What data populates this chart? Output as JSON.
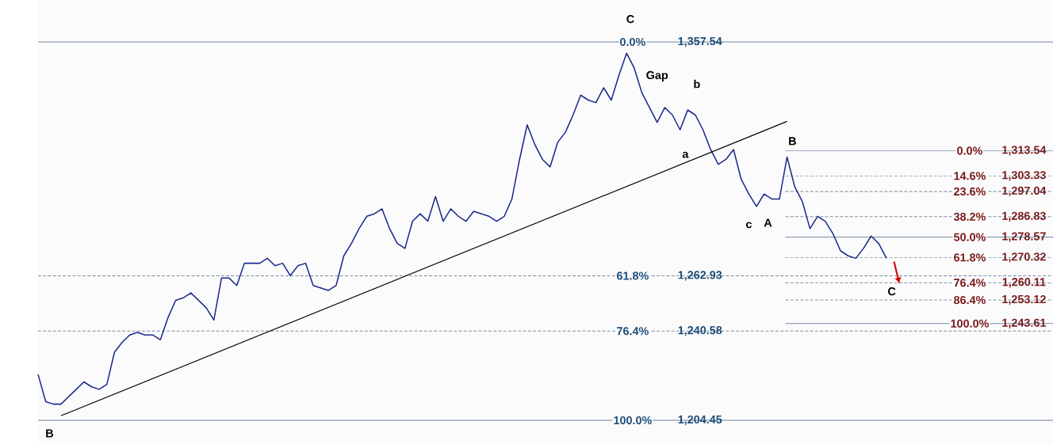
{
  "chart_data": {
    "type": "line",
    "categories": [
      null,
      null,
      null,
      null,
      null,
      null,
      null,
      null,
      null,
      null,
      null,
      null,
      null,
      null,
      null,
      null,
      null,
      null,
      null,
      null,
      null,
      null,
      null,
      null,
      null,
      null,
      null,
      null,
      null,
      null,
      null,
      null,
      null,
      null,
      null,
      null,
      null,
      null,
      null,
      null,
      null,
      null,
      null,
      null,
      null,
      null,
      null,
      null,
      null,
      null,
      null,
      null,
      null,
      null,
      null,
      null,
      null,
      null,
      null,
      null,
      null,
      null,
      null,
      null,
      null,
      null,
      null,
      null,
      null,
      null,
      null,
      null,
      null,
      null,
      null,
      null,
      null,
      null,
      null,
      null,
      null,
      null,
      null,
      null,
      null,
      null,
      null,
      null,
      null,
      null,
      null,
      null,
      null,
      null,
      null,
      null,
      null,
      null,
      null,
      null,
      null,
      null,
      null,
      null,
      null,
      null,
      null,
      null,
      null,
      null,
      null,
      null,
      null,
      null,
      null,
      null,
      null,
      null,
      null,
      null,
      null,
      null,
      null,
      null,
      null,
      null,
      null,
      null,
      null,
      null,
      null,
      null,
      null
    ],
    "ylim": [
      1204.45,
      1357.54
    ],
    "yticks": [
      {
        "value": 1357.54,
        "label": "1,357.54"
      },
      {
        "value": 1262.93,
        "label": "1,262.93"
      },
      {
        "value": 1240.58,
        "label": "1,240.58"
      },
      {
        "value": 1204.45,
        "label": "1,204.45"
      }
    ],
    "y2lim": [
      1204.45,
      1357.54
    ],
    "y2ticks": [
      {
        "value": 1313.54,
        "label": "1,313.54"
      },
      {
        "value": 1303.33,
        "label": "1,303.33"
      },
      {
        "value": 1297.04,
        "label": "1,297.04"
      },
      {
        "value": 1286.83,
        "label": "1,286.83"
      },
      {
        "value": 1278.57,
        "label": "1,278.57"
      },
      {
        "value": 1270.32,
        "label": "1,270.32"
      },
      {
        "value": 1260.11,
        "label": "1,260.11"
      },
      {
        "value": 1253.12,
        "label": "1,253.12"
      },
      {
        "value": 1243.61,
        "label": "1,243.61"
      }
    ],
    "tick_labels": "y",
    "series": [
      {
        "color": "#1c2b8c",
        "values": [
          1223,
          1212,
          1211,
          1211,
          1214,
          1217,
          1220,
          1218,
          1217,
          1219,
          1232,
          1236,
          1239,
          1240,
          1239,
          1239,
          1237,
          1246,
          1253,
          1254,
          1256,
          1253,
          1250,
          1245,
          1262,
          1262,
          1259,
          1268,
          1268,
          1268,
          1270,
          1267,
          1268,
          1263,
          1267,
          1268,
          1259,
          1258,
          1257,
          1259,
          1271,
          1276,
          1282,
          1287,
          1288,
          1290,
          1282,
          1276,
          1274,
          1285,
          1288,
          1285,
          1295,
          1285,
          1290,
          1287,
          1285,
          1289,
          1288,
          1287,
          1285,
          1287,
          1294,
          1310,
          1324,
          1316,
          1310,
          1307,
          1317,
          1321,
          1328,
          1336,
          1334,
          1333,
          1339,
          1334,
          1344,
          1353,
          1347,
          1337,
          1331,
          1325,
          1331,
          1328,
          1322,
          1330,
          1328,
          1322,
          1314,
          1308,
          1310,
          1314,
          1302,
          1296,
          1291,
          1296,
          1294,
          1294,
          1311,
          1299,
          1293,
          1282,
          1287,
          1285,
          1280,
          1273,
          1271,
          1270,
          1274,
          1279,
          1276,
          1270,
          null,
          null,
          null,
          null,
          null,
          null,
          null,
          null,
          null,
          null,
          null,
          null,
          null,
          null,
          null,
          null,
          null,
          null,
          null,
          null,
          null
        ]
      },
      {
        "type": "line",
        "color": "#000000",
        "values": [
          null,
          null,
          null,
          1206.3,
          null,
          null,
          null,
          null,
          null,
          null,
          null,
          null,
          null,
          null,
          null,
          null,
          null,
          null,
          null,
          null,
          null,
          null,
          null,
          null,
          null,
          null,
          null,
          null,
          null,
          null,
          null,
          null,
          null,
          null,
          null,
          null,
          null,
          null,
          null,
          null,
          null,
          null,
          null,
          null,
          null,
          null,
          null,
          null,
          null,
          null,
          null,
          null,
          null,
          null,
          null,
          null,
          null,
          null,
          null,
          null,
          null,
          null,
          null,
          null,
          null,
          null,
          null,
          null,
          null,
          null,
          null,
          null,
          null,
          null,
          null,
          null,
          null,
          null,
          null,
          null,
          null,
          null,
          null,
          null,
          null,
          null,
          null,
          null,
          null,
          null,
          null,
          null,
          null,
          null,
          null,
          null,
          null,
          null,
          1325.4,
          null,
          null,
          null,
          null,
          null,
          null,
          null,
          null,
          null,
          null,
          null,
          null,
          null,
          null,
          null,
          null,
          null,
          null,
          null,
          null,
          null,
          null,
          null,
          null,
          null,
          null,
          null,
          null,
          null,
          null,
          null,
          null,
          null,
          null
        ]
      }
    ],
    "ref_lines": [
      {
        "axis": "y",
        "value": 1357.54,
        "color": "#2c4a6b",
        "line_style": "solid"
      },
      {
        "axis": "y",
        "value": 1262.93,
        "color": "#2c4a6b",
        "line_style": "dashed"
      },
      {
        "axis": "y",
        "value": 1240.58,
        "color": "#2c4a6b",
        "line_style": "dashed"
      },
      {
        "axis": "y",
        "value": 1204.45,
        "color": "#2c4a6b",
        "line_style": "solid"
      },
      {
        "axis": "y2",
        "value": 1313.54,
        "color": "#2c4a6b",
        "line_style": "solid"
      },
      {
        "axis": "y2",
        "value": 1303.33,
        "color": "#2c4a6b",
        "line_style": "dashed"
      },
      {
        "axis": "y2",
        "value": 1297.04,
        "color": "#2c4a6b",
        "line_style": "dashed"
      },
      {
        "axis": "y2",
        "value": 1286.83,
        "color": "#2c4a6b",
        "line_style": "dashed"
      },
      {
        "axis": "y2",
        "value": 1278.57,
        "color": "#2c4a6b",
        "line_style": "solid"
      },
      {
        "axis": "y2",
        "value": 1270.32,
        "color": "#2c4a6b",
        "line_style": "dashed"
      },
      {
        "axis": "y2",
        "value": 1260.11,
        "color": "#2c4a6b",
        "line_style": "dashed"
      },
      {
        "axis": "y2",
        "value": 1253.12,
        "color": "#2c4a6b",
        "line_style": "dashed"
      },
      {
        "axis": "y2",
        "value": 1243.61,
        "color": "#2c4a6b",
        "line_style": "solid"
      }
    ],
    "annotations": [
      "C",
      "Gap",
      "b",
      "a",
      "B",
      "c",
      "A",
      "C",
      "B",
      {
        "text": "0.0%",
        "y": 1357.54
      },
      {
        "text": "61.8%",
        "y": 1262.93
      },
      {
        "text": "76.4%",
        "y": 1240.58
      },
      {
        "text": "100.0%",
        "y": 1204.45
      },
      {
        "text": "0.0%",
        "y": 1313.54
      },
      {
        "text": "14.6%",
        "y": 1303.33
      },
      {
        "text": "23.6%",
        "y": 1297.04
      },
      {
        "text": "38.2%",
        "y": 1286.83
      },
      {
        "text": "50.0%",
        "y": 1278.57
      },
      {
        "text": "61.8%",
        "y": 1270.32
      },
      {
        "text": "76.4%",
        "y": 1260.11
      },
      {
        "text": "86.4%",
        "y": 1253.12
      },
      {
        "text": "100.0%",
        "y": 1243.61
      }
    ]
  }
}
